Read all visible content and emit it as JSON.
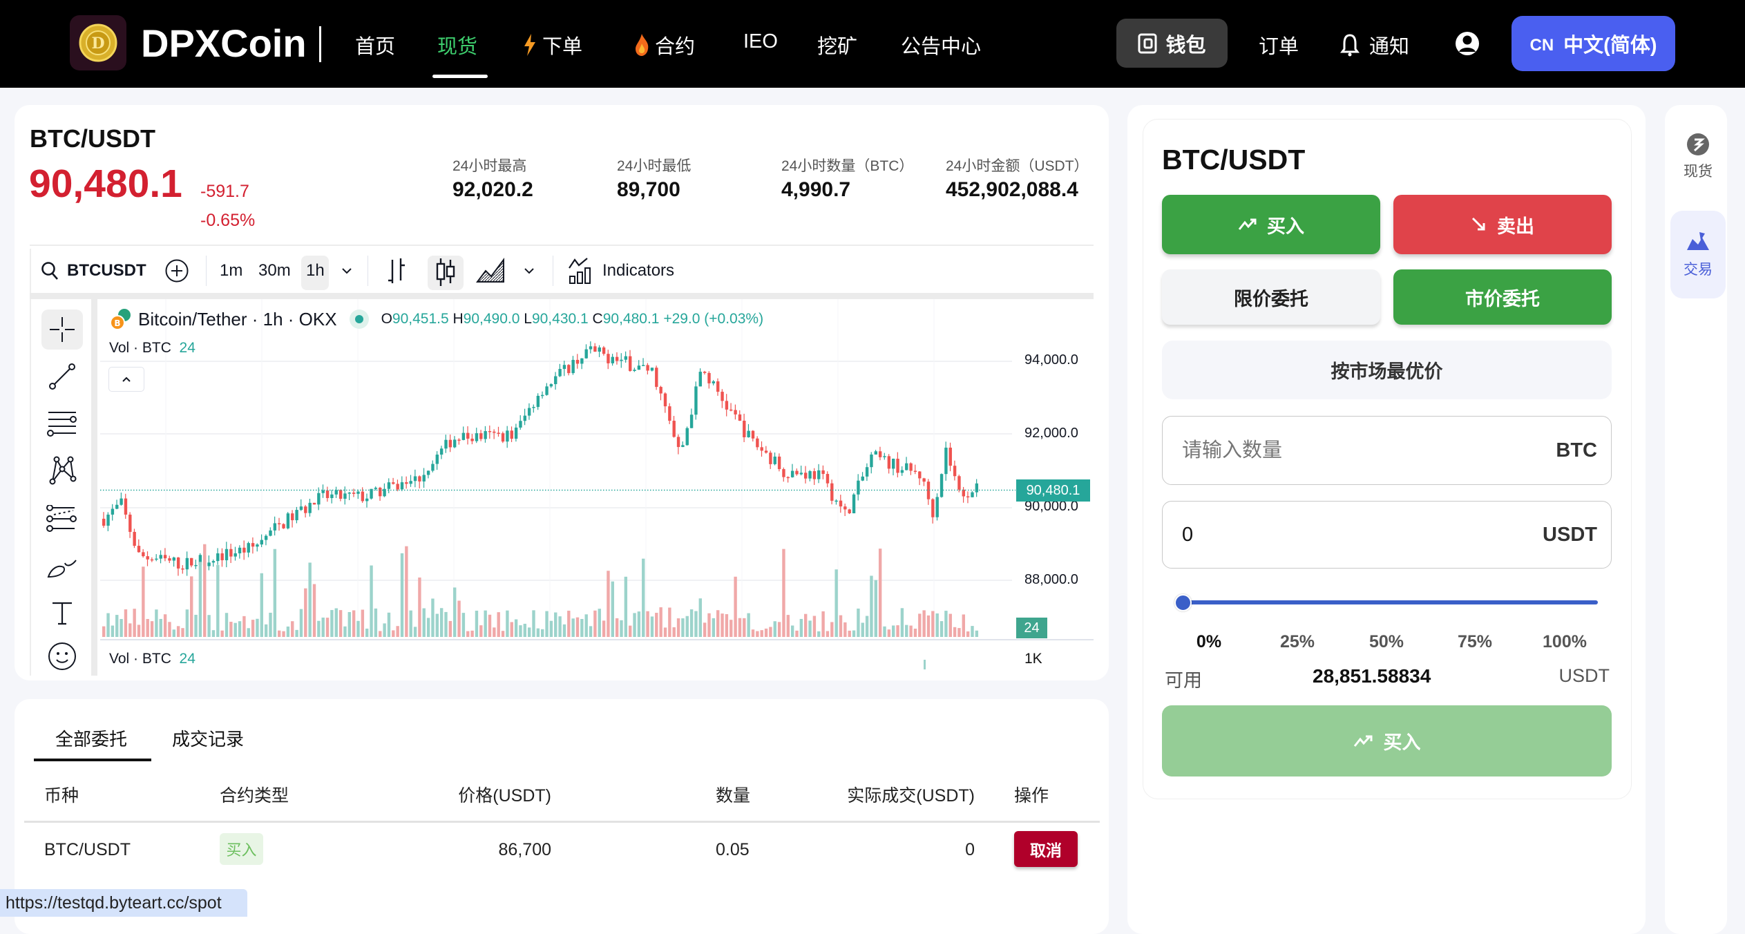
{
  "nav": {
    "brand": "DPXCoin",
    "items": [
      {
        "label": "首页",
        "icon": null
      },
      {
        "label": "现货",
        "icon": null,
        "active": true
      },
      {
        "label": "下单",
        "icon": "lightning-icon"
      },
      {
        "label": "合约",
        "icon": "fire-icon"
      },
      {
        "label": "IEO",
        "icon": null
      },
      {
        "label": "挖矿",
        "icon": null
      },
      {
        "label": "公告中心",
        "icon": null
      }
    ],
    "wallet": "钱包",
    "orders": "订单",
    "notifications": "通知",
    "lang_code": "CN",
    "lang_label": "中文(简体)",
    "active_color": "#3ecf6e",
    "lang_color": "#4a5ff0"
  },
  "ticker": {
    "pair": "BTC/USDT",
    "price": "90,480.1",
    "change": "-591.7",
    "change_pct": "-0.65%",
    "stats": [
      {
        "label": "24小时最高",
        "value": "92,020.2"
      },
      {
        "label": "24小时最低",
        "value": "89,700"
      },
      {
        "label": "24小时数量（BTC）",
        "value": "4,990.7"
      },
      {
        "label": "24小时金额（USDT）",
        "value": "452,902,088.4"
      }
    ],
    "down_color": "#d32030"
  },
  "chart": {
    "symbol": "BTCUSDT",
    "intervals": [
      "1m",
      "30m",
      "1h"
    ],
    "active_interval": "1h",
    "indicators": "Indicators",
    "title": "Bitcoin/Tether · 1h · OKX",
    "ohlc": {
      "o_label": "O",
      "o": "90,451.5",
      "h_label": "H",
      "h": "90,490.0",
      "l_label": "L",
      "l": "90,430.1",
      "c_label": "C",
      "c": "90,480.1",
      "chg": "+29.0 (+0.03%)"
    },
    "vol_label": "Vol · BTC",
    "vol_value": "24",
    "price_axis": [
      "94,000.0",
      "92,000.0",
      "90,000.0",
      "88,000.0"
    ],
    "last_price": "90,480.1",
    "vol_badge": "24",
    "vol_axis": "1K",
    "up_color": "#26a69a",
    "down_color": "#ef5350"
  },
  "trade": {
    "pair": "BTC/USDT",
    "buy": "买入",
    "sell": "卖出",
    "limit": "限价委托",
    "market": "市价委托",
    "best_price": "按市场最优价",
    "qty_placeholder": "请输入数量",
    "qty_unit": "BTC",
    "amount_value": "0",
    "amount_unit": "USDT",
    "slider_percent": 0,
    "percents": [
      "0%",
      "25%",
      "50%",
      "75%",
      "100%"
    ],
    "available_label": "可用",
    "available_value": "28,851.58834",
    "available_unit": "USDT",
    "submit": "买入"
  },
  "rail": {
    "spot": "现货",
    "trade": "交易"
  },
  "orders": {
    "tabs": [
      "全部委托",
      "成交记录"
    ],
    "columns": [
      "币种",
      "合约类型",
      "价格(USDT)",
      "数量",
      "实际成交(USDT)",
      "操作"
    ],
    "rows": [
      {
        "pair": "BTC/USDT",
        "type": "买入",
        "price": "86,700",
        "qty": "0.05",
        "filled": "0",
        "action": "取消"
      }
    ]
  },
  "status_url": "https://testqd.byteart.cc/spot"
}
